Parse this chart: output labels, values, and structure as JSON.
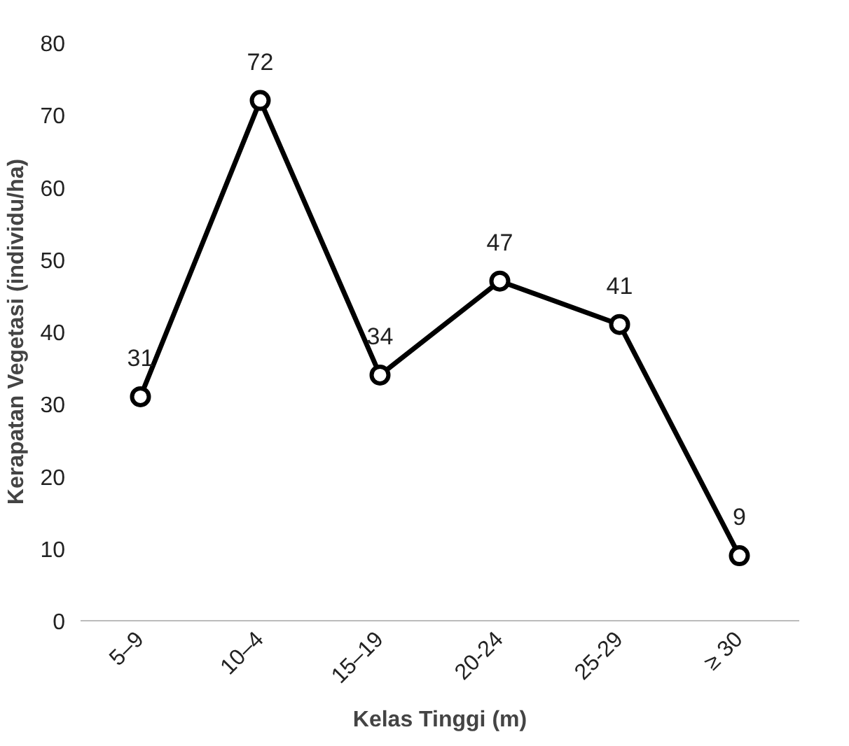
{
  "chart_data": {
    "type": "line",
    "xlabel": "Kelas Tinggi (m)",
    "ylabel": "Kerapatan Vegetasi (individu/ha)",
    "categories": [
      "5–9",
      "10–4",
      "15–19",
      "20-24",
      "25-29",
      "≥ 30"
    ],
    "series": [
      {
        "color": "#000000",
        "values": [
          31,
          72,
          34,
          47,
          41,
          9
        ]
      }
    ],
    "ylim": [
      0,
      80
    ],
    "yticks": [
      0,
      10,
      20,
      30,
      40,
      50,
      60,
      70,
      80
    ],
    "grid": false,
    "marker": "circle",
    "line_style": "solid",
    "data_labels": true
  }
}
